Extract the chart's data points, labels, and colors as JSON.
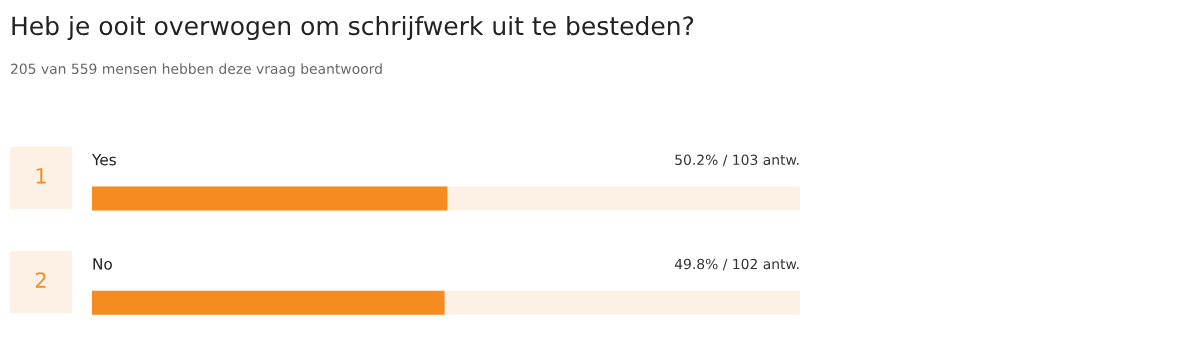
{
  "chart_data": {
    "type": "bar",
    "orientation": "horizontal",
    "title": "Heb je ooit overwogen om schrijfwerk uit te besteden?",
    "subtitle": "205 van 559 mensen hebben deze vraag beantwoord",
    "categories": [
      "Yes",
      "No"
    ],
    "values": [
      50.2,
      49.8
    ],
    "value_labels": [
      "50.2% / 103 antw.",
      "49.8% / 102 antw."
    ],
    "annotations": [
      "1",
      "2"
    ],
    "color": "#f68b1f",
    "xlim": [
      0,
      100
    ]
  }
}
